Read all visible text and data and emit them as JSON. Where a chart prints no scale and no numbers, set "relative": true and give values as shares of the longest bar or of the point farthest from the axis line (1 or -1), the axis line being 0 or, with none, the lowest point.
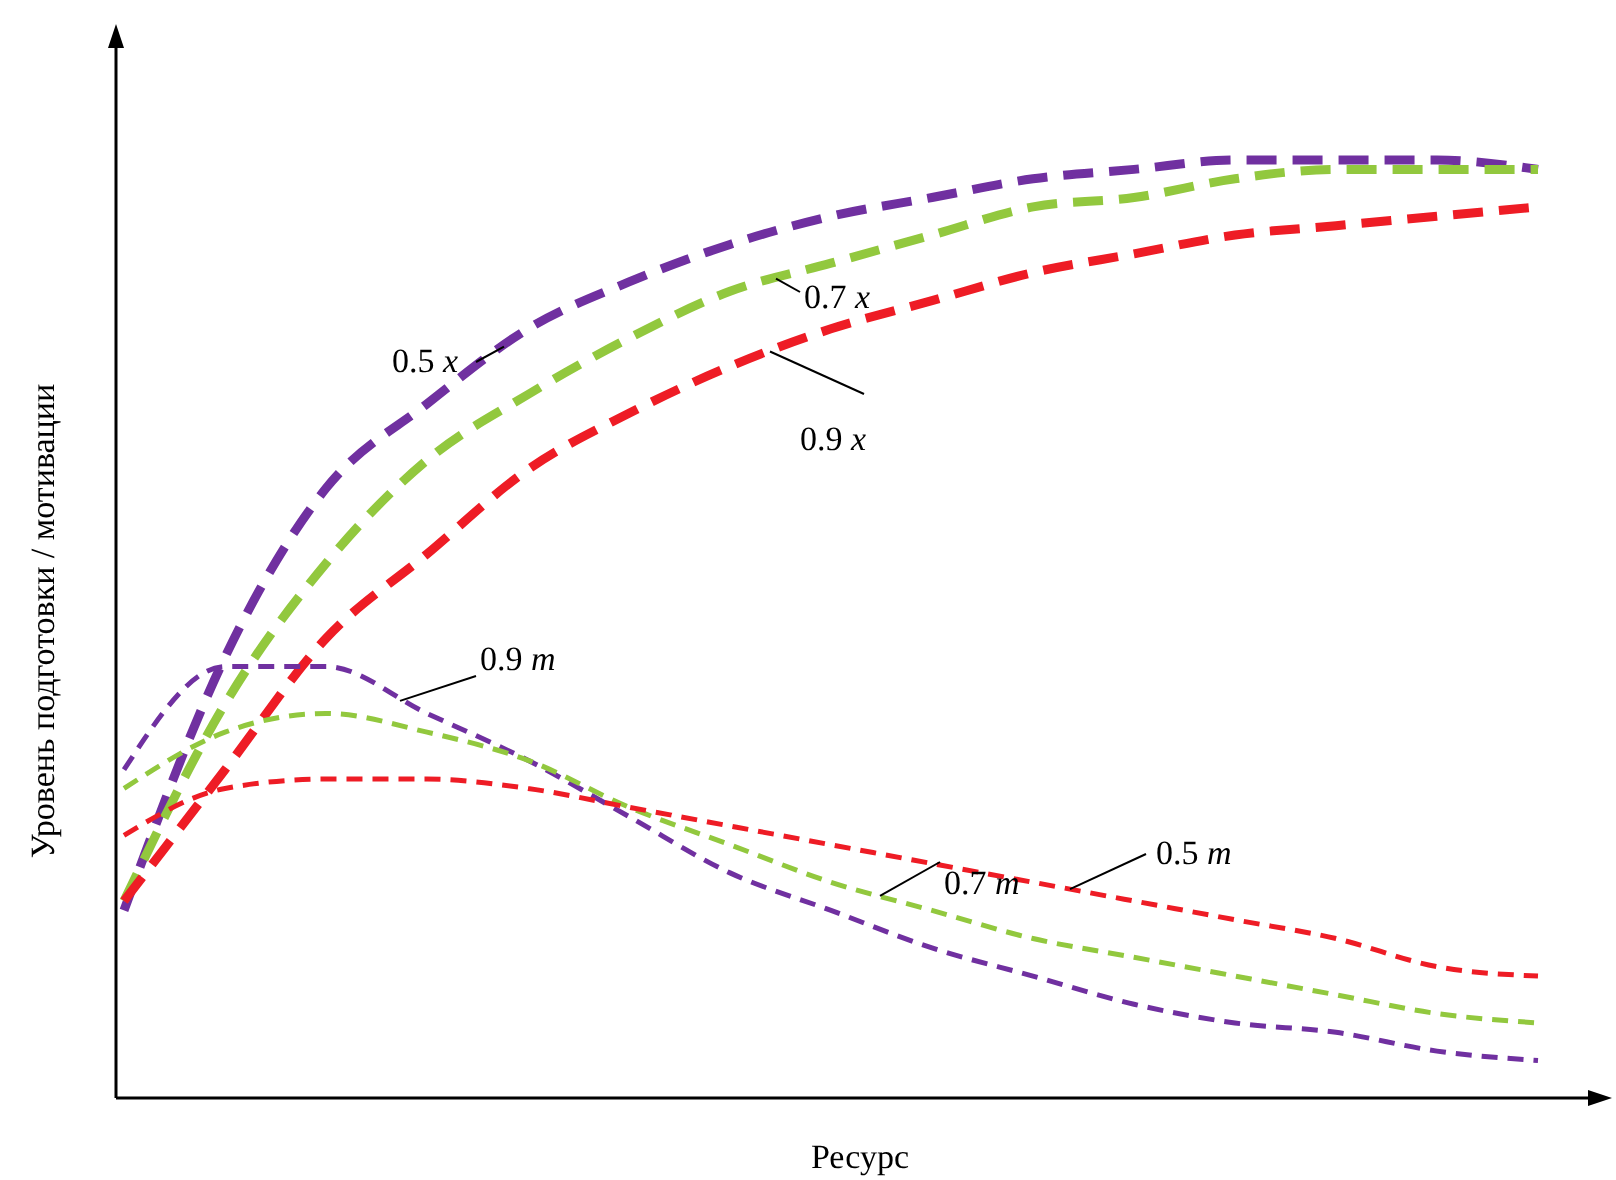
{
  "chart_data": {
    "type": "line",
    "xlabel": "Ресурс",
    "ylabel": "Уровень подготовки / мотивации",
    "relative": true,
    "line_style": "dashed",
    "marker": "none",
    "categories": [
      null,
      null,
      null,
      null,
      null,
      null,
      null,
      null,
      null,
      null,
      null,
      null,
      null,
      null,
      null
    ],
    "series": [
      {
        "name": "0.5 x",
        "color": "#7030a0",
        "values": [
          0.2,
          0.47,
          0.65,
          0.74,
          0.82,
          0.87,
          0.91,
          0.94,
          0.96,
          0.98,
          0.99,
          1.0,
          1.0,
          1.0,
          0.99
        ]
      },
      {
        "name": "0.7 x",
        "color": "#92c83e",
        "values": [
          0.21,
          0.42,
          0.57,
          0.68,
          0.75,
          0.81,
          0.86,
          0.89,
          0.92,
          0.95,
          0.96,
          0.98,
          0.99,
          0.99,
          0.99
        ]
      },
      {
        "name": "0.9 x",
        "color": "#ee1c25",
        "values": [
          0.21,
          0.35,
          0.49,
          0.58,
          0.67,
          0.73,
          0.78,
          0.82,
          0.85,
          0.88,
          0.9,
          0.92,
          0.93,
          0.94,
          0.95
        ]
      },
      {
        "name": "0.9 m",
        "color": "#7030a0",
        "values": [
          0.35,
          0.46,
          0.46,
          0.41,
          0.36,
          0.3,
          0.24,
          0.2,
          0.16,
          0.13,
          0.1,
          0.08,
          0.07,
          0.05,
          0.04
        ]
      },
      {
        "name": "0.7 m",
        "color": "#92c83e",
        "values": [
          0.33,
          0.39,
          0.41,
          0.39,
          0.36,
          0.31,
          0.27,
          0.23,
          0.2,
          0.17,
          0.15,
          0.13,
          0.11,
          0.09,
          0.08
        ]
      },
      {
        "name": "0.5 m",
        "color": "#ee1c25",
        "values": [
          0.28,
          0.33,
          0.34,
          0.34,
          0.33,
          0.31,
          0.29,
          0.27,
          0.25,
          0.23,
          0.21,
          0.19,
          0.17,
          0.14,
          0.13
        ]
      }
    ]
  }
}
